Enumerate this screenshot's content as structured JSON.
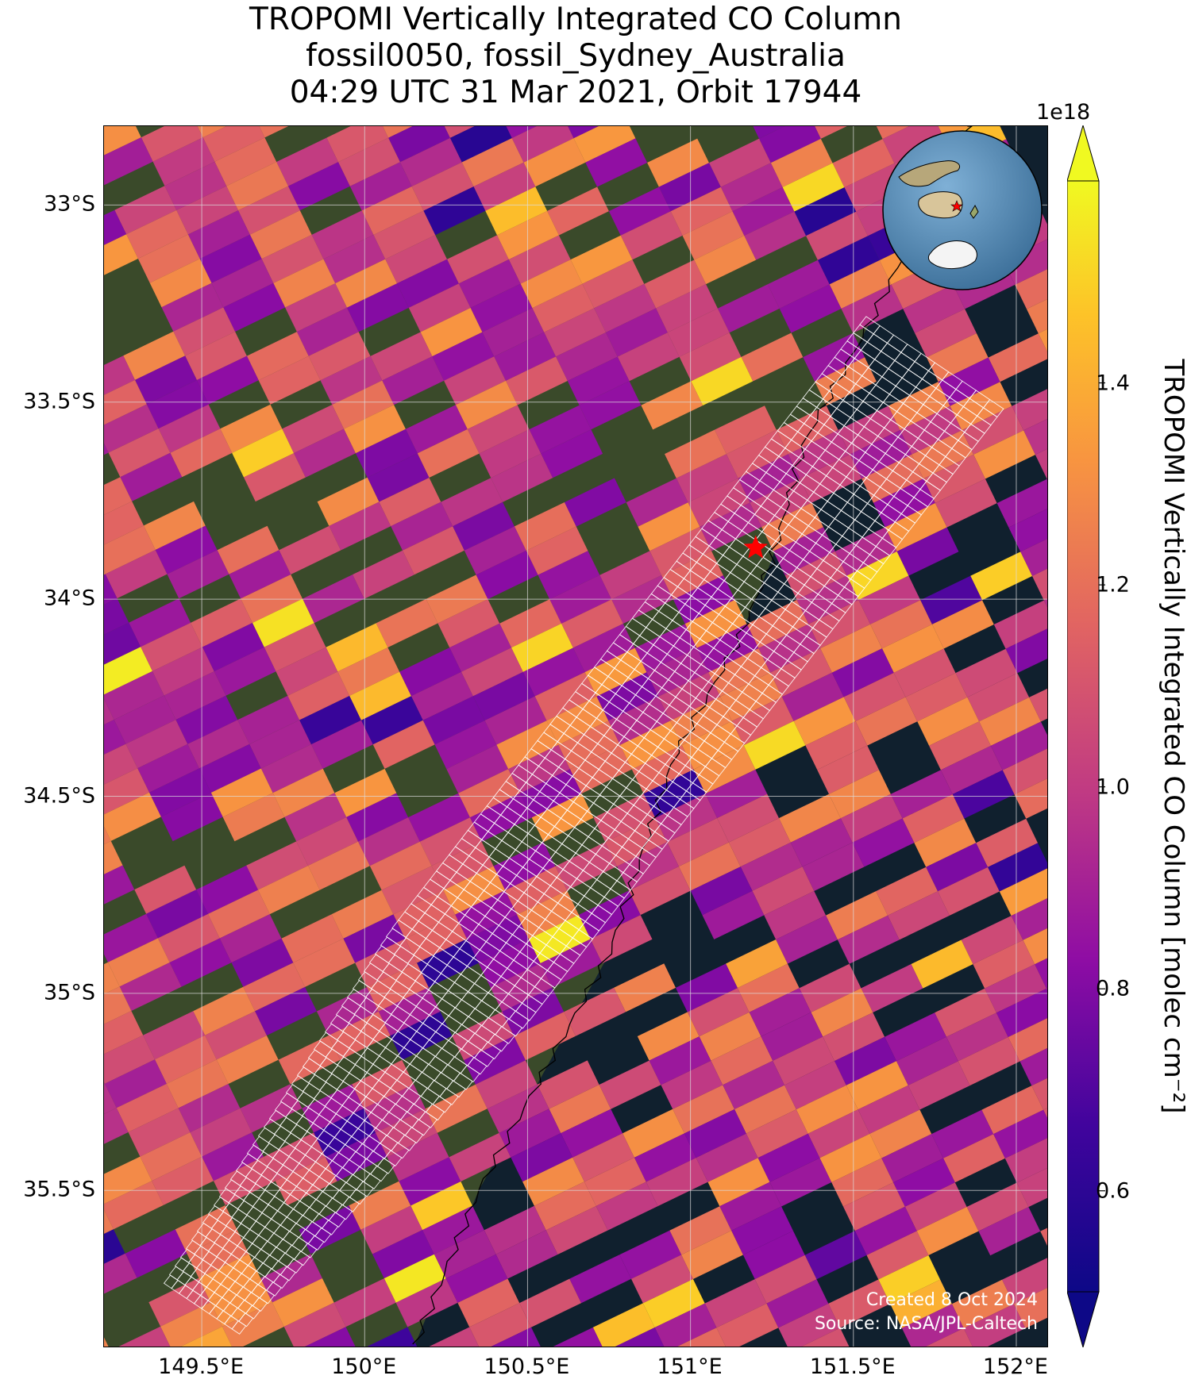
{
  "title": {
    "line1": "TROPOMI Vertically Integrated CO Column",
    "line2": "fossil0050, fossil_Sydney_Australia",
    "line3": "04:29 UTC 31 Mar 2021, Orbit 17944"
  },
  "axes": {
    "lat_ticks": [
      "33°S",
      "33.5°S",
      "34°S",
      "34.5°S",
      "35°S",
      "35.5°S"
    ],
    "lat_values": [
      -33.0,
      -33.5,
      -34.0,
      -34.5,
      -35.0,
      -35.5
    ],
    "lon_ticks": [
      "149.5°E",
      "150°E",
      "150.5°E",
      "151°E",
      "151.5°E",
      "152°E"
    ],
    "lon_values": [
      149.5,
      150.0,
      150.5,
      151.0,
      151.5,
      152.0
    ],
    "lat_range": [
      -35.9,
      -32.8
    ],
    "lon_range": [
      149.2,
      152.1
    ]
  },
  "colorbar": {
    "label": "TROPOMI Vertically Integrated CO Column [molec cm$^{-2}$]",
    "label_display": "TROPOMI Vertically Integrated CO Column [molec cm⁻²]",
    "exponent": "1e18",
    "ticks": [
      "0.6",
      "0.8",
      "1.0",
      "1.2",
      "1.4"
    ],
    "tick_values": [
      0.6,
      0.8,
      1.0,
      1.2,
      1.4
    ],
    "range": [
      0.5,
      1.6
    ],
    "colormap": "plasma",
    "extend": "both"
  },
  "target": {
    "name": "fossil_Sydney_Australia",
    "lon": 151.2,
    "lat": -33.87,
    "marker": "red-star"
  },
  "credits": {
    "created": "Created 8 Oct 2024",
    "source": "Source: NASA/JPL-Caltech"
  },
  "colors": {
    "land": "#3a4a2a",
    "ocean": "#10202e",
    "target_marker": "#ff0000",
    "grid": "#dddddd",
    "target_mode_outline": "#ffffff"
  },
  "inset": {
    "type": "globe",
    "marker": "red-star"
  },
  "chart_data": {
    "type": "heatmap",
    "title": "TROPOMI Vertically Integrated CO Column",
    "xlabel": "",
    "ylabel": "",
    "xlim": [
      149.2,
      152.1
    ],
    "ylim": [
      -35.9,
      -32.8
    ],
    "value_range": [
      0.5,
      1.6
    ],
    "value_units": "1e18 molec cm^-2",
    "colorbar_ticks": [
      0.6,
      0.8,
      1.0,
      1.2,
      1.4
    ],
    "target_mode_band": {
      "start": {
        "lon": 149.5,
        "lat": -35.8
      },
      "end": {
        "lon": 151.75,
        "lat": -33.4
      }
    }
  }
}
